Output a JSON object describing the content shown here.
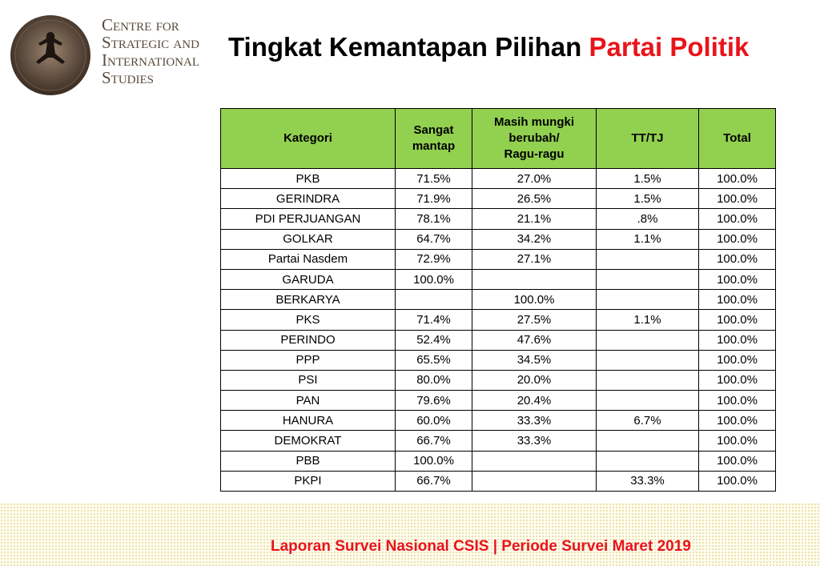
{
  "logo": {
    "lines": [
      "Centre for",
      "Strategic and",
      "International",
      "Studies"
    ]
  },
  "title": {
    "main": "Tingkat Kemantapan Pilihan",
    "highlight": "Partai Politik"
  },
  "table": {
    "headers": [
      [
        "Kategori"
      ],
      [
        "Sangat",
        "mantap"
      ],
      [
        "Masih mungki",
        "berubah/",
        "Ragu-ragu"
      ],
      [
        "TT/TJ"
      ],
      [
        "Total"
      ]
    ],
    "rows": [
      [
        "PKB",
        "71.5%",
        "27.0%",
        "1.5%",
        "100.0%"
      ],
      [
        "GERINDRA",
        "71.9%",
        "26.5%",
        "1.5%",
        "100.0%"
      ],
      [
        "PDI PERJUANGAN",
        "78.1%",
        "21.1%",
        ".8%",
        "100.0%"
      ],
      [
        "GOLKAR",
        "64.7%",
        "34.2%",
        "1.1%",
        "100.0%"
      ],
      [
        "Partai Nasdem",
        "72.9%",
        "27.1%",
        null,
        "100.0%"
      ],
      [
        "GARUDA",
        "100.0%",
        null,
        null,
        "100.0%"
      ],
      [
        "BERKARYA",
        null,
        "100.0%",
        null,
        "100.0%"
      ],
      [
        "PKS",
        "71.4%",
        "27.5%",
        "1.1%",
        "100.0%"
      ],
      [
        "PERINDO",
        "52.4%",
        "47.6%",
        null,
        "100.0%"
      ],
      [
        "PPP",
        "65.5%",
        "34.5%",
        null,
        "100.0%"
      ],
      [
        "PSI",
        "80.0%",
        "20.0%",
        null,
        "100.0%"
      ],
      [
        "PAN",
        "79.6%",
        "20.4%",
        null,
        "100.0%"
      ],
      [
        "HANURA",
        "60.0%",
        "33.3%",
        "6.7%",
        "100.0%"
      ],
      [
        "DEMOKRAT",
        "66.7%",
        "33.3%",
        null,
        "100.0%"
      ],
      [
        "PBB",
        "100.0%",
        null,
        null,
        "100.0%"
      ],
      [
        "PKPI",
        "66.7%",
        null,
        "33.3%",
        "100.0%"
      ]
    ]
  },
  "footer": "Laporan Survei Nasional CSIS | Periode Survei Maret 2019"
}
